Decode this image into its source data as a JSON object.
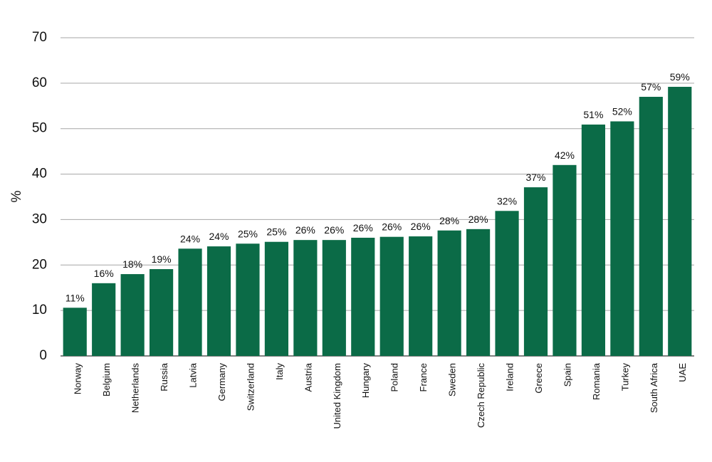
{
  "chart_data": {
    "type": "bar",
    "y_label": "%",
    "categories": [
      "Norway",
      "Belgium",
      "Netherlands",
      "Russia",
      "Latvia",
      "Germany",
      "Switzerland",
      "Italy",
      "Austria",
      "United Kingdom",
      "Hungary",
      "Poland",
      "France",
      "Sweden",
      "Czech Republic",
      "Ireland",
      "Greece",
      "Spain",
      "Romania",
      "Turkey",
      "South Africa",
      "UAE"
    ],
    "values": [
      10.6,
      16.0,
      18.0,
      19.1,
      23.6,
      24.1,
      24.7,
      25.1,
      25.5,
      25.5,
      26.0,
      26.2,
      26.3,
      27.6,
      27.9,
      31.9,
      37.1,
      42.0,
      50.9,
      51.6,
      57.0,
      59.2
    ],
    "value_labels": [
      "11%",
      "16%",
      "18%",
      "19%",
      "24%",
      "24%",
      "25%",
      "25%",
      "26%",
      "26%",
      "26%",
      "26%",
      "26%",
      "28%",
      "28%",
      "32%",
      "37%",
      "42%",
      "51%",
      "52%",
      "57%",
      "59%"
    ],
    "color": "#0b6b47",
    "ylim": [
      0,
      70
    ],
    "yticks": [
      0,
      10,
      20,
      30,
      40,
      50,
      60,
      70
    ],
    "grid": true
  }
}
